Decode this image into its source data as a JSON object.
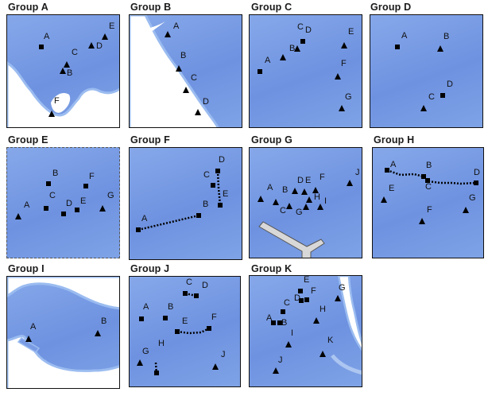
{
  "groups": [
    {
      "title": "Group A",
      "markers": [
        {
          "label": "A",
          "shape": "square"
        },
        {
          "label": "B",
          "shape": "triangle"
        },
        {
          "label": "C",
          "shape": "triangle"
        },
        {
          "label": "D",
          "shape": "triangle"
        },
        {
          "label": "E",
          "shape": "triangle"
        },
        {
          "label": "F",
          "shape": "triangle"
        }
      ]
    },
    {
      "title": "Group B",
      "markers": [
        {
          "label": "A",
          "shape": "triangle"
        },
        {
          "label": "B",
          "shape": "triangle"
        },
        {
          "label": "C",
          "shape": "triangle"
        },
        {
          "label": "D",
          "shape": "triangle"
        }
      ]
    },
    {
      "title": "Group C",
      "markers": [
        {
          "label": "A",
          "shape": "square"
        },
        {
          "label": "B",
          "shape": "triangle"
        },
        {
          "label": "C",
          "shape": "triangle"
        },
        {
          "label": "D",
          "shape": "square"
        },
        {
          "label": "E",
          "shape": "triangle"
        },
        {
          "label": "F",
          "shape": "triangle"
        },
        {
          "label": "G",
          "shape": "triangle"
        }
      ]
    },
    {
      "title": "Group D",
      "markers": [
        {
          "label": "A",
          "shape": "square"
        },
        {
          "label": "B",
          "shape": "triangle"
        },
        {
          "label": "C",
          "shape": "triangle"
        },
        {
          "label": "D",
          "shape": "square"
        }
      ]
    },
    {
      "title": "Group E",
      "markers": [
        {
          "label": "A",
          "shape": "triangle"
        },
        {
          "label": "B",
          "shape": "square"
        },
        {
          "label": "C",
          "shape": "square"
        },
        {
          "label": "D",
          "shape": "square"
        },
        {
          "label": "E",
          "shape": "square"
        },
        {
          "label": "F",
          "shape": "square"
        },
        {
          "label": "G",
          "shape": "triangle"
        }
      ]
    },
    {
      "title": "Group F",
      "markers": [
        {
          "label": "A",
          "shape": "square"
        },
        {
          "label": "B",
          "shape": "square"
        },
        {
          "label": "C",
          "shape": "square"
        },
        {
          "label": "D",
          "shape": "square"
        },
        {
          "label": "E",
          "shape": "square"
        }
      ]
    },
    {
      "title": "Group G",
      "markers": [
        {
          "label": "A",
          "shape": "triangle"
        },
        {
          "label": "B",
          "shape": "triangle"
        },
        {
          "label": "C",
          "shape": "triangle"
        },
        {
          "label": "D",
          "shape": "triangle"
        },
        {
          "label": "E",
          "shape": "triangle"
        },
        {
          "label": "F",
          "shape": "triangle"
        },
        {
          "label": "G",
          "shape": "triangle"
        },
        {
          "label": "H",
          "shape": "triangle"
        },
        {
          "label": "I",
          "shape": "triangle"
        },
        {
          "label": "J",
          "shape": "triangle"
        }
      ]
    },
    {
      "title": "Group H",
      "markers": [
        {
          "label": "A",
          "shape": "square"
        },
        {
          "label": "B",
          "shape": "square"
        },
        {
          "label": "C",
          "shape": "square"
        },
        {
          "label": "D",
          "shape": "square"
        },
        {
          "label": "E",
          "shape": "triangle"
        },
        {
          "label": "F",
          "shape": "triangle"
        },
        {
          "label": "G",
          "shape": "triangle"
        }
      ]
    },
    {
      "title": "Group I",
      "markers": [
        {
          "label": "A",
          "shape": "triangle"
        },
        {
          "label": "B",
          "shape": "triangle"
        }
      ]
    },
    {
      "title": "Group J",
      "markers": [
        {
          "label": "A",
          "shape": "square"
        },
        {
          "label": "B",
          "shape": "square"
        },
        {
          "label": "C",
          "shape": "square"
        },
        {
          "label": "D",
          "shape": "square"
        },
        {
          "label": "E",
          "shape": "square"
        },
        {
          "label": "F",
          "shape": "square"
        },
        {
          "label": "G",
          "shape": "triangle"
        },
        {
          "label": "H",
          "shape": "square"
        },
        {
          "label": "J",
          "shape": "triangle"
        }
      ]
    },
    {
      "title": "Group K",
      "markers": [
        {
          "label": "A",
          "shape": "square"
        },
        {
          "label": "B",
          "shape": "square"
        },
        {
          "label": "C",
          "shape": "square"
        },
        {
          "label": "D",
          "shape": "square"
        },
        {
          "label": "E",
          "shape": "square"
        },
        {
          "label": "F",
          "shape": "square"
        },
        {
          "label": "G",
          "shape": "triangle"
        },
        {
          "label": "H",
          "shape": "triangle"
        },
        {
          "label": "I",
          "shape": "triangle"
        },
        {
          "label": "J",
          "shape": "triangle"
        },
        {
          "label": "K",
          "shape": "triangle"
        }
      ]
    }
  ],
  "colors": {
    "water": "#7a9ce5",
    "land": "#ffffff",
    "shore": "#b9d0f4",
    "road": "#d8d8d8",
    "marker": "#000000"
  }
}
